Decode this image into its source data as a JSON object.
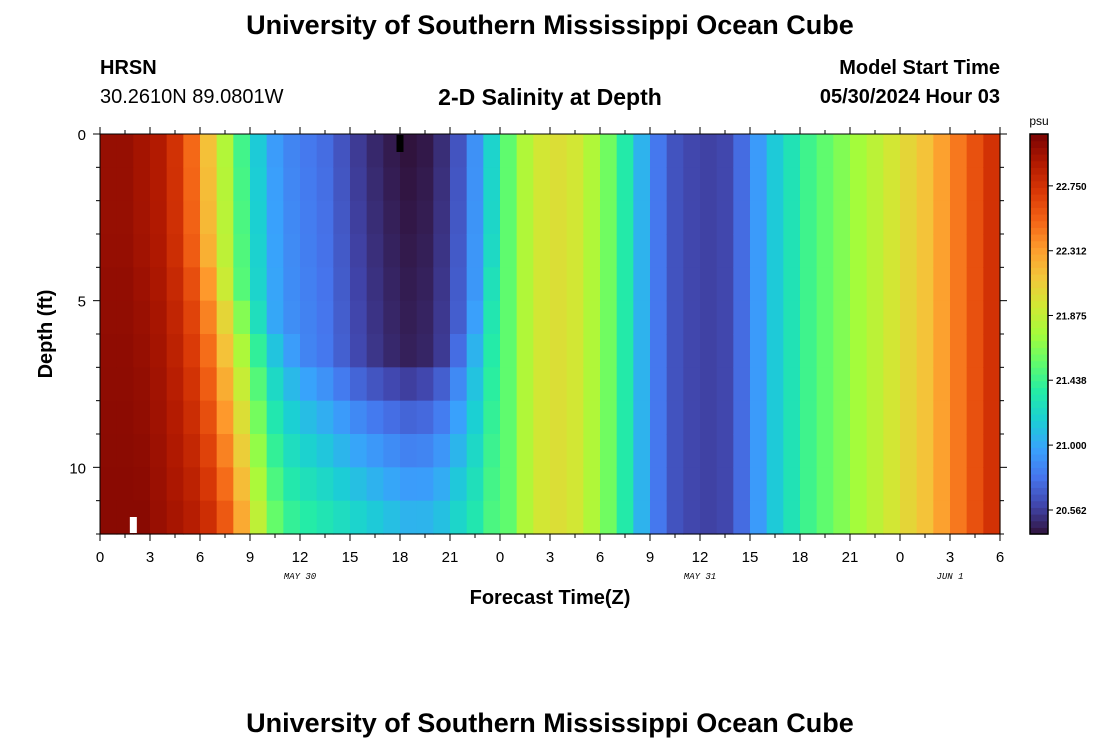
{
  "header": {
    "title": "University of Southern Mississippi Ocean Cube",
    "station_name": "HRSN",
    "station_coords": "30.2610N  89.0801W",
    "chart_title": "2-D Salinity at Depth",
    "model_label": "Model Start Time",
    "model_time": "05/30/2024 Hour 03"
  },
  "footer": {
    "title": "University of Southern Mississippi Ocean Cube"
  },
  "chart_data": {
    "type": "heatmap",
    "title": "2-D Salinity at Depth",
    "xlabel": "Forecast Time(Z)",
    "ylabel": "Depth (ft)",
    "x_unit": "hours from 05/30 00Z",
    "x_range": [
      0,
      54
    ],
    "x_ticks": [
      0,
      3,
      6,
      9,
      12,
      15,
      18,
      21,
      24,
      27,
      30,
      33,
      36,
      39,
      42,
      45,
      48,
      51,
      54
    ],
    "x_tick_labels": [
      "0",
      "3",
      "6",
      "9",
      "12",
      "15",
      "18",
      "21",
      "0",
      "3",
      "6",
      "9",
      "12",
      "15",
      "18",
      "21",
      "0",
      "3",
      "6"
    ],
    "date_labels": [
      {
        "label": "MAY 30",
        "hour": 12
      },
      {
        "label": "MAY 31",
        "hour": 36
      },
      {
        "label": "JUN 1",
        "hour": 51
      }
    ],
    "y_range": [
      0,
      12
    ],
    "y_ticks": [
      0,
      5,
      10
    ],
    "y_tick_labels": [
      "0",
      "5",
      "10"
    ],
    "y_inverted": true,
    "colorbar": {
      "unit": "psu",
      "min": 20.4,
      "max": 23.1,
      "ticks": [
        20.562,
        21.0,
        21.438,
        21.875,
        22.312,
        22.75
      ],
      "tick_labels": [
        "20.562",
        "21.000",
        "21.438",
        "21.875",
        "22.312",
        "22.750"
      ],
      "colors": [
        "#30123b",
        "#4145ab",
        "#4675ed",
        "#39a2fc",
        "#1bcfd4",
        "#24eca6",
        "#61fc6c",
        "#a4fc3b",
        "#d1e834",
        "#f3c63a",
        "#fe9b2d",
        "#f36315",
        "#d93806",
        "#b11901",
        "#7a0403"
      ]
    },
    "hours": [
      0,
      1,
      2,
      3,
      4,
      5,
      6,
      7,
      8,
      9,
      10,
      11,
      12,
      13,
      14,
      15,
      16,
      17,
      18,
      19,
      20,
      21,
      22,
      23,
      24,
      25,
      26,
      27,
      28,
      29,
      30,
      31,
      32,
      33,
      34,
      35,
      36,
      37,
      38,
      39,
      40,
      41,
      42,
      43,
      44,
      45,
      46,
      47,
      48,
      49,
      50,
      51,
      52,
      53,
      54
    ],
    "depths": [
      0,
      1,
      2,
      3,
      4,
      5,
      6,
      7,
      8,
      9,
      10,
      11,
      12
    ],
    "surface_salinity": [
      23.0,
      23.0,
      22.95,
      22.9,
      22.75,
      22.5,
      22.15,
      21.8,
      21.45,
      21.15,
      20.95,
      20.85,
      20.8,
      20.75,
      20.65,
      20.55,
      20.48,
      20.43,
      20.4,
      20.42,
      20.5,
      20.65,
      20.9,
      21.2,
      21.55,
      21.8,
      21.95,
      22.0,
      21.95,
      21.8,
      21.6,
      21.35,
      21.05,
      20.8,
      20.65,
      20.6,
      20.58,
      20.6,
      20.75,
      20.95,
      21.15,
      21.3,
      21.45,
      21.55,
      21.65,
      21.75,
      21.85,
      21.95,
      22.05,
      22.15,
      22.3,
      22.45,
      22.6,
      22.75,
      22.9
    ],
    "bottom_salinity": [
      23.05,
      23.05,
      23.05,
      23.0,
      22.95,
      22.9,
      22.8,
      22.6,
      22.3,
      21.9,
      21.6,
      21.45,
      21.4,
      21.35,
      21.3,
      21.25,
      21.2,
      21.15,
      21.1,
      21.1,
      21.15,
      21.25,
      21.35,
      21.5
    ],
    "upper_layer_bottom_depth": [
      3,
      3,
      3,
      3,
      3,
      3,
      3,
      4,
      4.5,
      5,
      5.5,
      6,
      6.5,
      6.7,
      6.8,
      6.8,
      6.8,
      6.8,
      6.8,
      6.7,
      6.5,
      6,
      5,
      3
    ]
  }
}
